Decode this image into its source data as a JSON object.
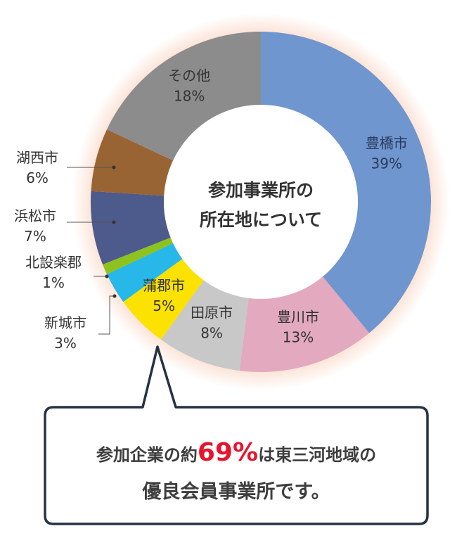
{
  "chart_data": {
    "type": "pie",
    "title": [
      "参加事業所の",
      "所在地について"
    ],
    "slices": [
      {
        "name": "豊橋市",
        "value": 39,
        "label": "39%",
        "color": "#6f96ce"
      },
      {
        "name": "豊川市",
        "value": 13,
        "label": "13%",
        "color": "#e3a9bf"
      },
      {
        "name": "田原市",
        "value": 8,
        "label": "8%",
        "color": "#c8c8c8"
      },
      {
        "name": "蒲郡市",
        "value": 5,
        "label": "5%",
        "color": "#fce200"
      },
      {
        "name": "新城市",
        "value": 3,
        "label": "3%",
        "color": "#27b7e8"
      },
      {
        "name": "北設楽郡",
        "value": 1,
        "label": "1%",
        "color": "#8ec21f"
      },
      {
        "name": "浜松市",
        "value": 7,
        "label": "7%",
        "color": "#4d5a8c"
      },
      {
        "name": "湖西市",
        "value": 6,
        "label": "6%",
        "color": "#996434"
      },
      {
        "name": "その他",
        "value": 18,
        "label": "18%",
        "color": "#8c8c8c"
      }
    ]
  },
  "callout": {
    "line1_prefix": "参加企業の約",
    "line1_highlight": "69%",
    "line1_suffix": "は東三河地域の",
    "line2": "優良会員事業所です。"
  }
}
